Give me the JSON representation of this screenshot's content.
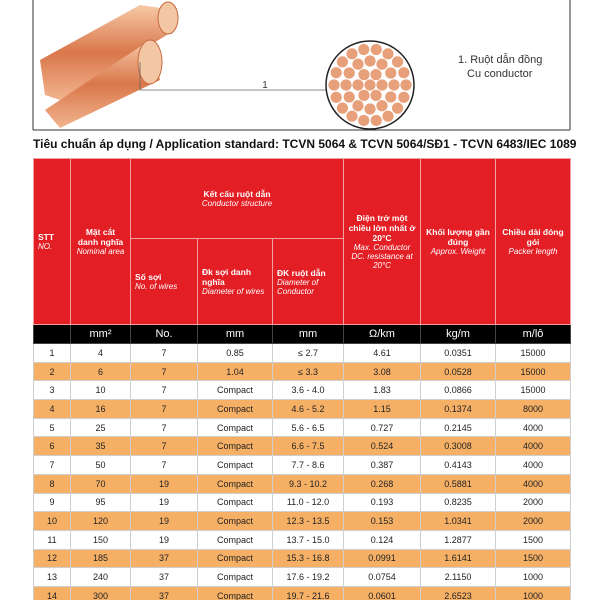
{
  "illustration": {
    "callout_number": "1",
    "legend_vi": "1. Ruột dẫn đồng",
    "legend_en": "Cu conductor"
  },
  "standard": "Tiêu chuẩn áp dụng / Application standard: TCVN 5064 & TCVN 5064/SĐ1 - TCVN 6483/IEC 1089",
  "table": {
    "headers": {
      "stt": {
        "vi": "STT",
        "en": "NO."
      },
      "area": {
        "vi": "Mặt cắt danh nghĩa",
        "en": "Nominal area"
      },
      "structure": {
        "vi": "Kết cấu ruột dẫn",
        "en": "Conductor structure"
      },
      "wires": {
        "vi": "Số sợi",
        "en": "No. of wires"
      },
      "wire_diameter": {
        "vi": "Đk sợi danh nghĩa",
        "en": "Diameter of wires"
      },
      "conductor_diameter": {
        "vi": "ĐK ruột dẫn",
        "en": "Diameter of Conductor"
      },
      "resistance": {
        "vi": "Điện trở một chiều lớn nhất ở 20°C",
        "en": "Max. Conductor DC. resistance at 20°C"
      },
      "weight": {
        "vi": "Khối lượng gần đúng",
        "en": "Approx. Weight"
      },
      "length": {
        "vi": "Chiều dài đóng gói",
        "en": "Packer length"
      }
    },
    "units": [
      "mm²",
      "No.",
      "mm",
      "mm",
      "Ω/km",
      "kg/m",
      "m/lô"
    ],
    "rows": [
      [
        "1",
        "4",
        "7",
        "0.85",
        "≤ 2.7",
        "4.61",
        "0.0351",
        "15000"
      ],
      [
        "2",
        "6",
        "7",
        "1.04",
        "≤ 3.3",
        "3.08",
        "0.0528",
        "15000"
      ],
      [
        "3",
        "10",
        "7",
        "Compact",
        "3.6 - 4.0",
        "1.83",
        "0.0866",
        "15000"
      ],
      [
        "4",
        "16",
        "7",
        "Compact",
        "4.6 - 5.2",
        "1.15",
        "0.1374",
        "8000"
      ],
      [
        "5",
        "25",
        "7",
        "Compact",
        "5.6 - 6.5",
        "0.727",
        "0.2145",
        "4000"
      ],
      [
        "6",
        "35",
        "7",
        "Compact",
        "6.6 - 7.5",
        "0.524",
        "0.3008",
        "4000"
      ],
      [
        "7",
        "50",
        "7",
        "Compact",
        "7.7 - 8.6",
        "0.387",
        "0.4143",
        "4000"
      ],
      [
        "8",
        "70",
        "19",
        "Compact",
        "9.3 - 10.2",
        "0.268",
        "0.5881",
        "4000"
      ],
      [
        "9",
        "95",
        "19",
        "Compact",
        "11.0 - 12.0",
        "0.193",
        "0.8235",
        "2000"
      ],
      [
        "10",
        "120",
        "19",
        "Compact",
        "12.3 - 13.5",
        "0.153",
        "1.0341",
        "2000"
      ],
      [
        "11",
        "150",
        "19",
        "Compact",
        "13.7 - 15.0",
        "0.124",
        "1.2877",
        "1500"
      ],
      [
        "12",
        "185",
        "37",
        "Compact",
        "15.3 - 16.8",
        "0.0991",
        "1.6141",
        "1500"
      ],
      [
        "13",
        "240",
        "37",
        "Compact",
        "17.6 - 19.2",
        "0.0754",
        "2.1150",
        "1000"
      ],
      [
        "14",
        "300",
        "37",
        "Compact",
        "19.7 - 21.6",
        "0.0601",
        "2.6523",
        "1000"
      ]
    ]
  }
}
